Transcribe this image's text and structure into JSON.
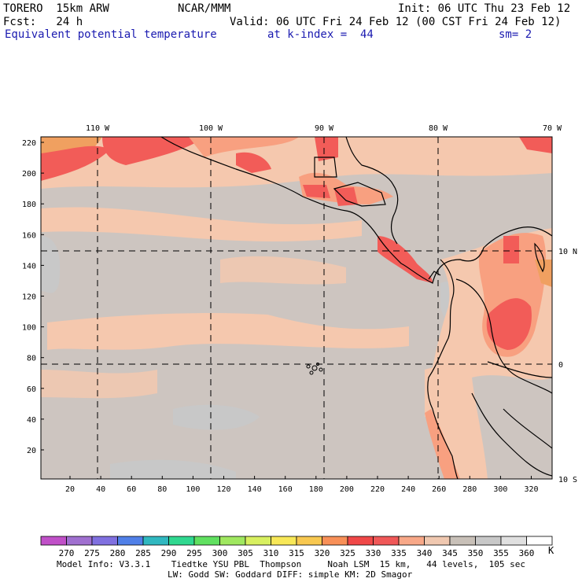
{
  "header": {
    "model": "TORERO  15km ARW",
    "center": "NCAR/MMM",
    "init": "Init: 06 UTC Thu 23 Feb 12",
    "fcst": "Fcst:   24 h",
    "valid": "Valid: 06 UTC Fri 24 Feb 12 (00 CST Fri 24 Feb 12)",
    "field": "Equivalent potential temperature",
    "kindex": "at k-index =  44",
    "smooth": "sm= 2"
  },
  "map": {
    "top_lon_labels": [
      "110 W",
      "100 W",
      "90 W",
      "80 W",
      "70 W"
    ],
    "right_lat_labels": [
      "10 N",
      "0",
      "10 S"
    ],
    "y_ticks": [
      "220",
      "200",
      "180",
      "160",
      "140",
      "120",
      "100",
      "80",
      "60",
      "40",
      "20"
    ],
    "x_ticks": [
      "20",
      "40",
      "60",
      "80",
      "100",
      "120",
      "140",
      "160",
      "180",
      "200",
      "220",
      "240",
      "260",
      "280",
      "300",
      "320"
    ],
    "colors": {
      "bg_gray": "#cdc5c0",
      "peach": "#f5c8ae",
      "light_gray": "#c8c8c8",
      "salmon": "#f8a080",
      "red": "#f25c58",
      "orange": "#f0a060"
    }
  },
  "legend": {
    "unit": "K",
    "labels": [
      "270",
      "275",
      "280",
      "285",
      "290",
      "295",
      "300",
      "305",
      "310",
      "315",
      "320",
      "325",
      "330",
      "335",
      "340",
      "345",
      "350",
      "355",
      "360"
    ],
    "colors": [
      "#c050c8",
      "#a070d0",
      "#8070e0",
      "#5080e8",
      "#30b8c0",
      "#30d890",
      "#60e060",
      "#a0e860",
      "#d8f060",
      "#f8e858",
      "#f8c850",
      "#f89058",
      "#f04848",
      "#f05858",
      "#f8a888",
      "#f0c8b0",
      "#c8c0b8",
      "#c8c8c8",
      "#e0e0e0",
      "#ffffff"
    ]
  },
  "footer": {
    "line1": "Model Info: V3.3.1    Tiedtke YSU PBL  Thompson     Noah LSM  15 km,   44 levels,  105 sec",
    "line2": "LW: Godd SW: Goddard DIFF: simple KM: 2D Smagor"
  }
}
